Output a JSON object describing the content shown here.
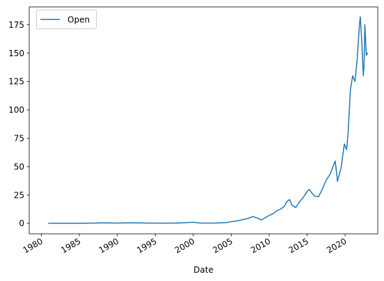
{
  "chart_data": {
    "type": "line",
    "title": "",
    "xlabel": "Date",
    "ylabel": "",
    "x_range": [
      1978.4,
      2024.3
    ],
    "ylim": [
      -9.2,
      190.7
    ],
    "x_ticks": [
      "1980",
      "1985",
      "1990",
      "1995",
      "2000",
      "2005",
      "2010",
      "2015",
      "2020"
    ],
    "y_ticks": [
      0,
      25,
      50,
      75,
      100,
      125,
      150,
      175
    ],
    "grid": false,
    "legend_position": "top-left",
    "line_color": "#1f77b4",
    "series": [
      {
        "name": "Open",
        "x": [
          1980.95,
          1983.0,
          1985.0,
          1987.0,
          1988.0,
          1990.0,
          1992.0,
          1994.0,
          1996.0,
          1998.0,
          1999.5,
          2000.0,
          2000.5,
          2001.0,
          2003.0,
          2004.5,
          2005.0,
          2006.0,
          2007.0,
          2007.9,
          2008.5,
          2009.0,
          2009.5,
          2010.0,
          2010.5,
          2011.0,
          2011.5,
          2012.0,
          2012.3,
          2012.7,
          2013.0,
          2013.5,
          2014.0,
          2014.5,
          2015.0,
          2015.3,
          2015.7,
          2016.0,
          2016.5,
          2017.0,
          2017.5,
          2018.0,
          2018.7,
          2019.0,
          2019.5,
          2019.9,
          2020.2,
          2020.4,
          2020.7,
          2021.0,
          2021.3,
          2021.6,
          2021.9,
          2022.0,
          2022.2,
          2022.4,
          2022.5,
          2022.6,
          2022.8,
          2022.95
        ],
        "y": [
          0.1,
          0.1,
          0.1,
          0.3,
          0.4,
          0.3,
          0.5,
          0.3,
          0.2,
          0.3,
          0.8,
          1.0,
          0.6,
          0.3,
          0.3,
          0.8,
          1.5,
          2.5,
          4.0,
          6.0,
          4.5,
          3.0,
          5.0,
          7.0,
          8.5,
          11.0,
          12.5,
          15.0,
          19.0,
          21.0,
          16.0,
          14.0,
          19.0,
          23.0,
          28.0,
          30.0,
          26.0,
          24.0,
          23.5,
          30.0,
          38.0,
          43.0,
          55.0,
          37.0,
          50.0,
          70.0,
          65.0,
          80.0,
          118.0,
          130.0,
          125.0,
          145.0,
          176.0,
          182.0,
          160.0,
          130.0,
          140.0,
          175.0,
          148.0,
          150.0
        ]
      }
    ]
  }
}
